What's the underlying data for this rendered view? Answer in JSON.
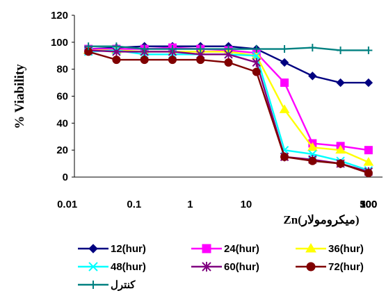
{
  "chart_data": {
    "type": "line",
    "xlabel": "Zn(میکرومولار)",
    "ylabel": "% Viability",
    "x_scale": "log",
    "x_tick_labels": [
      "0.01",
      "0.1",
      "1",
      "10",
      "100",
      "300",
      "500"
    ],
    "y_ticks": [
      0,
      20,
      40,
      60,
      80,
      100,
      120
    ],
    "ylim": [
      0,
      120
    ],
    "legend_position": "bottom",
    "x": [
      0.02,
      0.05,
      0.15,
      0.5,
      1.5,
      5,
      15,
      25,
      35,
      45,
      55
    ],
    "series": [
      {
        "name": "12(hur)",
        "color": "#000080",
        "marker": "diamond",
        "values": [
          95,
          96,
          97,
          97,
          97,
          97,
          95,
          85,
          75,
          70,
          70
        ]
      },
      {
        "name": "24(hur)",
        "color": "#FF00FF",
        "marker": "square",
        "values": [
          95,
          95,
          95,
          96,
          95,
          94,
          92,
          70,
          25,
          23,
          20
        ]
      },
      {
        "name": "36(hur)",
        "color": "#FFFF00",
        "marker": "triangle",
        "values": [
          94,
          94,
          93,
          93,
          93,
          93,
          90,
          50,
          22,
          20,
          11
        ]
      },
      {
        "name": "48(hur)",
        "color": "#00FFFF",
        "marker": "x",
        "values": [
          93,
          94,
          91,
          91,
          91,
          91,
          90,
          20,
          17,
          12,
          5
        ]
      },
      {
        "name": "60(hur)",
        "color": "#800080",
        "marker": "star",
        "values": [
          94,
          93,
          93,
          93,
          91,
          91,
          85,
          15,
          13,
          10,
          4
        ]
      },
      {
        "name": "72(hur)",
        "color": "#800000",
        "marker": "circle",
        "values": [
          93,
          87,
          87,
          87,
          87,
          85,
          78,
          15,
          12,
          10,
          3
        ]
      },
      {
        "name": "کنترل",
        "color": "#008080",
        "marker": "plus",
        "values": [
          97,
          97,
          95,
          95,
          95,
          95,
          95,
          95,
          96,
          94,
          94
        ]
      }
    ]
  }
}
